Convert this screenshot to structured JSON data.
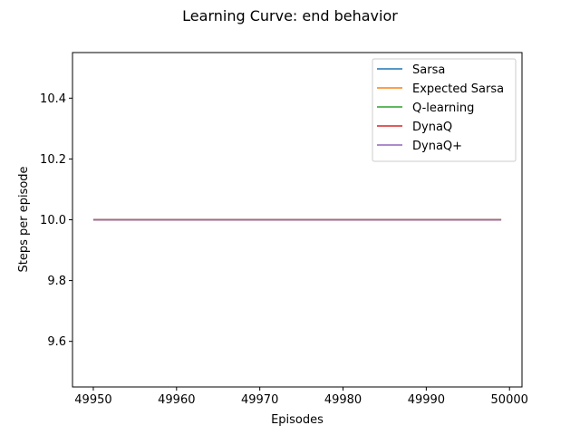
{
  "chart_data": {
    "type": "line",
    "title": "Learning Curve: end behavior",
    "xlabel": "Episodes",
    "ylabel": "Steps per episode",
    "xlim": [
      49947.5,
      50001.5
    ],
    "ylim": [
      9.45,
      10.55
    ],
    "xticks": [
      49950,
      49960,
      49970,
      49980,
      49990,
      50000
    ],
    "yticks": [
      9.6,
      9.8,
      10.0,
      10.2,
      10.4
    ],
    "xtick_labels": [
      "49950",
      "49960",
      "49970",
      "49980",
      "49990",
      "50000"
    ],
    "ytick_labels": [
      "9.6",
      "9.8",
      "10.0",
      "10.2",
      "10.4"
    ],
    "grid": false,
    "legend_position": "top-right",
    "x_range": [
      49950,
      49999
    ],
    "series": [
      {
        "name": "Sarsa",
        "color": "#1f77b4",
        "y_constant": 10.0
      },
      {
        "name": "Expected Sarsa",
        "color": "#ff7f0e",
        "y_constant": 10.0
      },
      {
        "name": "Q-learning",
        "color": "#2ca02c",
        "y_constant": 10.0
      },
      {
        "name": "DynaQ",
        "color": "#d62728",
        "y_constant": 10.0
      },
      {
        "name": "DynaQ+",
        "color": "#9467bd",
        "y_constant": 10.0
      }
    ]
  }
}
